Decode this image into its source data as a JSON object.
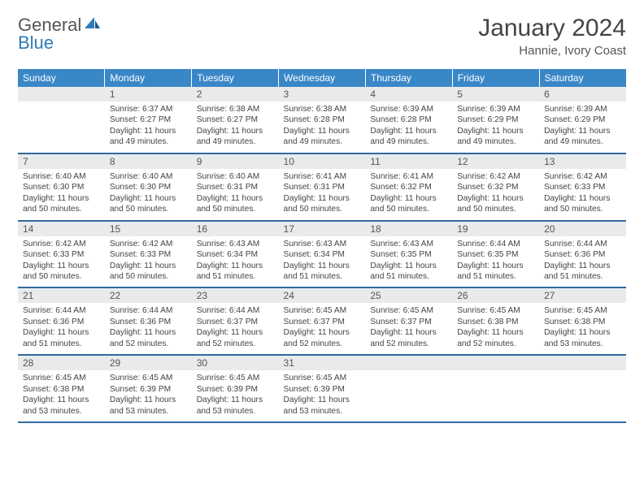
{
  "brand": {
    "word1": "General",
    "word2": "Blue"
  },
  "title": "January 2024",
  "location": "Hannie, Ivory Coast",
  "colors": {
    "header_bg": "#3a87c8",
    "header_text": "#ffffff",
    "daynum_bg": "#e9eaec",
    "row_divider": "#2f6a9e",
    "brand_gray": "#555555",
    "brand_blue": "#2f7ab8",
    "body_text": "#444444",
    "page_bg": "#ffffff"
  },
  "typography": {
    "month_title_fontsize": 30,
    "location_fontsize": 15,
    "dow_fontsize": 12,
    "daynum_fontsize": 12,
    "body_fontsize": 10.2
  },
  "days_of_week": [
    "Sunday",
    "Monday",
    "Tuesday",
    "Wednesday",
    "Thursday",
    "Friday",
    "Saturday"
  ],
  "layout": {
    "first_day_column": 1,
    "weeks": 5
  },
  "day_data": {
    "1": {
      "sunrise": "6:37 AM",
      "sunset": "6:27 PM",
      "daylight": "11 hours and 49 minutes."
    },
    "2": {
      "sunrise": "6:38 AM",
      "sunset": "6:27 PM",
      "daylight": "11 hours and 49 minutes."
    },
    "3": {
      "sunrise": "6:38 AM",
      "sunset": "6:28 PM",
      "daylight": "11 hours and 49 minutes."
    },
    "4": {
      "sunrise": "6:39 AM",
      "sunset": "6:28 PM",
      "daylight": "11 hours and 49 minutes."
    },
    "5": {
      "sunrise": "6:39 AM",
      "sunset": "6:29 PM",
      "daylight": "11 hours and 49 minutes."
    },
    "6": {
      "sunrise": "6:39 AM",
      "sunset": "6:29 PM",
      "daylight": "11 hours and 49 minutes."
    },
    "7": {
      "sunrise": "6:40 AM",
      "sunset": "6:30 PM",
      "daylight": "11 hours and 50 minutes."
    },
    "8": {
      "sunrise": "6:40 AM",
      "sunset": "6:30 PM",
      "daylight": "11 hours and 50 minutes."
    },
    "9": {
      "sunrise": "6:40 AM",
      "sunset": "6:31 PM",
      "daylight": "11 hours and 50 minutes."
    },
    "10": {
      "sunrise": "6:41 AM",
      "sunset": "6:31 PM",
      "daylight": "11 hours and 50 minutes."
    },
    "11": {
      "sunrise": "6:41 AM",
      "sunset": "6:32 PM",
      "daylight": "11 hours and 50 minutes."
    },
    "12": {
      "sunrise": "6:42 AM",
      "sunset": "6:32 PM",
      "daylight": "11 hours and 50 minutes."
    },
    "13": {
      "sunrise": "6:42 AM",
      "sunset": "6:33 PM",
      "daylight": "11 hours and 50 minutes."
    },
    "14": {
      "sunrise": "6:42 AM",
      "sunset": "6:33 PM",
      "daylight": "11 hours and 50 minutes."
    },
    "15": {
      "sunrise": "6:42 AM",
      "sunset": "6:33 PM",
      "daylight": "11 hours and 50 minutes."
    },
    "16": {
      "sunrise": "6:43 AM",
      "sunset": "6:34 PM",
      "daylight": "11 hours and 51 minutes."
    },
    "17": {
      "sunrise": "6:43 AM",
      "sunset": "6:34 PM",
      "daylight": "11 hours and 51 minutes."
    },
    "18": {
      "sunrise": "6:43 AM",
      "sunset": "6:35 PM",
      "daylight": "11 hours and 51 minutes."
    },
    "19": {
      "sunrise": "6:44 AM",
      "sunset": "6:35 PM",
      "daylight": "11 hours and 51 minutes."
    },
    "20": {
      "sunrise": "6:44 AM",
      "sunset": "6:36 PM",
      "daylight": "11 hours and 51 minutes."
    },
    "21": {
      "sunrise": "6:44 AM",
      "sunset": "6:36 PM",
      "daylight": "11 hours and 51 minutes."
    },
    "22": {
      "sunrise": "6:44 AM",
      "sunset": "6:36 PM",
      "daylight": "11 hours and 52 minutes."
    },
    "23": {
      "sunrise": "6:44 AM",
      "sunset": "6:37 PM",
      "daylight": "11 hours and 52 minutes."
    },
    "24": {
      "sunrise": "6:45 AM",
      "sunset": "6:37 PM",
      "daylight": "11 hours and 52 minutes."
    },
    "25": {
      "sunrise": "6:45 AM",
      "sunset": "6:37 PM",
      "daylight": "11 hours and 52 minutes."
    },
    "26": {
      "sunrise": "6:45 AM",
      "sunset": "6:38 PM",
      "daylight": "11 hours and 52 minutes."
    },
    "27": {
      "sunrise": "6:45 AM",
      "sunset": "6:38 PM",
      "daylight": "11 hours and 53 minutes."
    },
    "28": {
      "sunrise": "6:45 AM",
      "sunset": "6:38 PM",
      "daylight": "11 hours and 53 minutes."
    },
    "29": {
      "sunrise": "6:45 AM",
      "sunset": "6:39 PM",
      "daylight": "11 hours and 53 minutes."
    },
    "30": {
      "sunrise": "6:45 AM",
      "sunset": "6:39 PM",
      "daylight": "11 hours and 53 minutes."
    },
    "31": {
      "sunrise": "6:45 AM",
      "sunset": "6:39 PM",
      "daylight": "11 hours and 53 minutes."
    }
  },
  "labels": {
    "sunrise": "Sunrise: ",
    "sunset": "Sunset: ",
    "daylight": "Daylight: "
  }
}
